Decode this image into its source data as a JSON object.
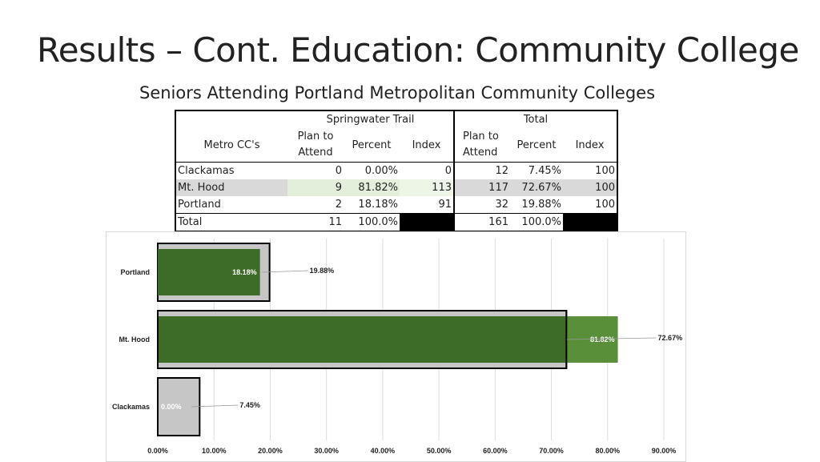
{
  "slide": {
    "title": "Results – Cont. Education: Community College",
    "subtitle": "Seniors Attending Portland Metropolitan Community Colleges"
  },
  "table": {
    "group_springwater": "Springwater Trail",
    "group_total": "Total",
    "col_metro": "Metro CC's",
    "col_plan_line1": "Plan to",
    "col_plan_line2": "Attend",
    "col_percent": "Percent",
    "col_index": "Index",
    "rows": [
      {
        "name": "Clackamas",
        "sw_plan": "0",
        "sw_pct": "0.00%",
        "sw_index": "0",
        "t_plan": "12",
        "t_pct": "7.45%",
        "t_index": "100"
      },
      {
        "name": "Mt. Hood",
        "sw_plan": "9",
        "sw_pct": "81.82%",
        "sw_index": "113",
        "t_plan": "117",
        "t_pct": "72.67%",
        "t_index": "100"
      },
      {
        "name": "Portland",
        "sw_plan": "2",
        "sw_pct": "18.18%",
        "sw_index": "91",
        "t_plan": "32",
        "t_pct": "19.88%",
        "t_index": "100"
      }
    ],
    "total": {
      "name": "Total",
      "sw_plan": "11",
      "sw_pct": "100.0%",
      "t_plan": "161",
      "t_pct": "100.0%"
    }
  },
  "chart_data": {
    "type": "bar",
    "orientation": "horizontal",
    "categories": [
      "Portland",
      "Mt. Hood",
      "Clackamas"
    ],
    "series": [
      {
        "values": [
          18.18,
          81.82,
          0.0
        ],
        "labels": [
          "18.18%",
          "81.82%",
          "0.00%"
        ]
      },
      {
        "values": [
          19.88,
          72.67,
          7.45
        ],
        "labels": [
          "19.88%",
          "72.67%",
          "7.45%"
        ]
      }
    ],
    "xticks": [
      "0.00%",
      "10.00%",
      "20.00%",
      "30.00%",
      "40.00%",
      "50.00%",
      "60.00%",
      "70.00%",
      "80.00%",
      "90.00%"
    ],
    "xlim": [
      0,
      90
    ],
    "grid": true,
    "colors": {
      "springwater": "#3d6b28",
      "springwater_light": "#5a8f3a",
      "total": "#c6c6c6",
      "outline": "#000000"
    }
  }
}
